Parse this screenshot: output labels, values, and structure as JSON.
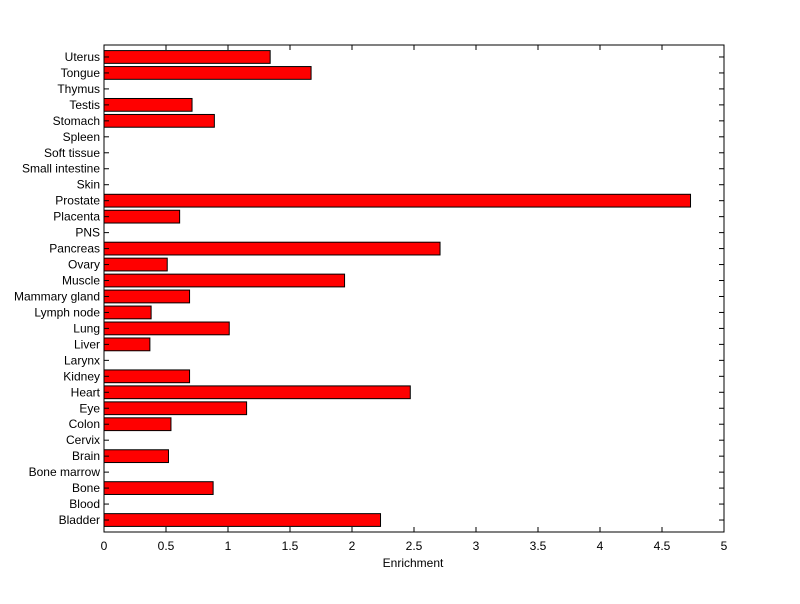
{
  "chart_data": {
    "type": "bar",
    "orientation": "horizontal",
    "title": "",
    "xlabel": "Enrichment",
    "ylabel": "",
    "xlim": [
      0,
      5
    ],
    "xticks": [
      "0",
      "0.5",
      "1",
      "1.5",
      "2",
      "2.5",
      "3",
      "3.5",
      "4",
      "4.5",
      "5"
    ],
    "grid": false,
    "bar_color": "#ff0000",
    "edge_color": "#000000",
    "categories": [
      "Bladder",
      "Blood",
      "Bone",
      "Bone marrow",
      "Brain",
      "Cervix",
      "Colon",
      "Eye",
      "Heart",
      "Kidney",
      "Larynx",
      "Liver",
      "Lung",
      "Lymph node",
      "Mammary gland",
      "Muscle",
      "Ovary",
      "Pancreas",
      "PNS",
      "Placenta",
      "Prostate",
      "Skin",
      "Small intestine",
      "Soft tissue",
      "Spleen",
      "Stomach",
      "Testis",
      "Thymus",
      "Tongue",
      "Uterus"
    ],
    "values": [
      2.23,
      0,
      0.88,
      0,
      0.52,
      0,
      0.54,
      1.15,
      2.47,
      0.69,
      0,
      0.37,
      1.01,
      0.38,
      0.69,
      1.94,
      0.51,
      2.71,
      0,
      0.61,
      4.73,
      0,
      0,
      0,
      0,
      0.89,
      0.71,
      0,
      1.67,
      1.34
    ]
  }
}
